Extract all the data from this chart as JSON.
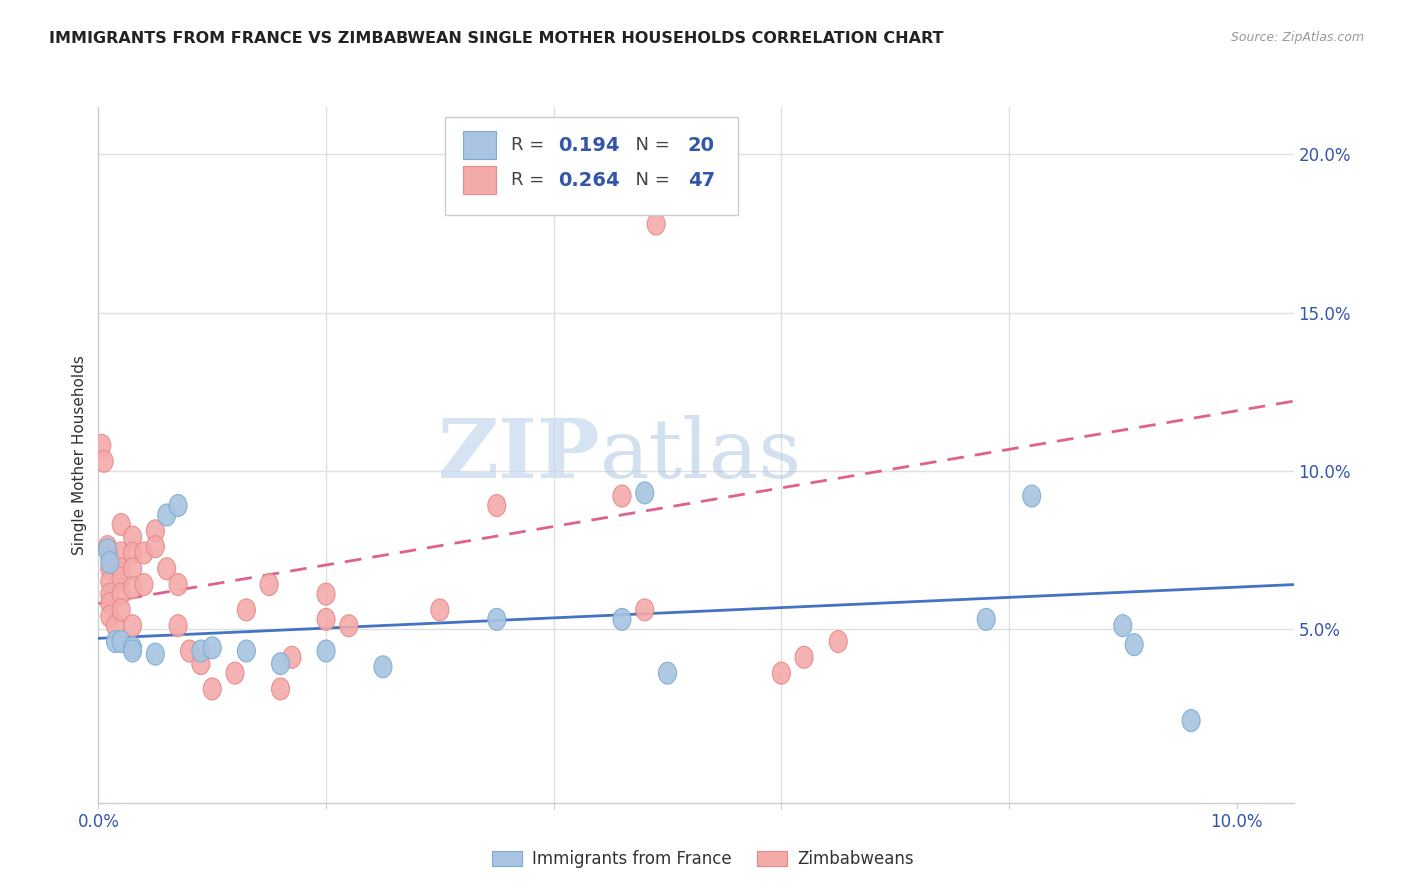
{
  "title": "IMMIGRANTS FROM FRANCE VS ZIMBABWEAN SINGLE MOTHER HOUSEHOLDS CORRELATION CHART",
  "source": "Source: ZipAtlas.com",
  "ylabel": "Single Mother Households",
  "ytick_labels": [
    "5.0%",
    "10.0%",
    "15.0%",
    "20.0%"
  ],
  "ytick_values": [
    0.05,
    0.1,
    0.15,
    0.2
  ],
  "xlim": [
    0.0,
    0.105
  ],
  "ylim": [
    -0.005,
    0.215
  ],
  "blue_color": "#a8c4e0",
  "pink_color": "#f4aaaa",
  "blue_edge_color": "#7aadd4",
  "pink_edge_color": "#e88888",
  "blue_line_color": "#4472C4",
  "pink_line_color": "#E06090",
  "blue_scatter": [
    [
      0.0008,
      0.075
    ],
    [
      0.001,
      0.071
    ],
    [
      0.0015,
      0.046
    ],
    [
      0.002,
      0.046
    ],
    [
      0.003,
      0.044
    ],
    [
      0.003,
      0.043
    ],
    [
      0.005,
      0.042
    ],
    [
      0.006,
      0.086
    ],
    [
      0.007,
      0.089
    ],
    [
      0.009,
      0.043
    ],
    [
      0.01,
      0.044
    ],
    [
      0.013,
      0.043
    ],
    [
      0.016,
      0.039
    ],
    [
      0.02,
      0.043
    ],
    [
      0.025,
      0.038
    ],
    [
      0.035,
      0.053
    ],
    [
      0.046,
      0.053
    ],
    [
      0.048,
      0.093
    ],
    [
      0.05,
      0.036
    ],
    [
      0.078,
      0.053
    ],
    [
      0.082,
      0.092
    ],
    [
      0.09,
      0.051
    ],
    [
      0.091,
      0.045
    ],
    [
      0.096,
      0.021
    ]
  ],
  "pink_scatter": [
    [
      0.0003,
      0.108
    ],
    [
      0.0005,
      0.103
    ],
    [
      0.0008,
      0.076
    ],
    [
      0.001,
      0.073
    ],
    [
      0.001,
      0.069
    ],
    [
      0.001,
      0.065
    ],
    [
      0.001,
      0.061
    ],
    [
      0.001,
      0.058
    ],
    [
      0.001,
      0.054
    ],
    [
      0.0015,
      0.051
    ],
    [
      0.002,
      0.083
    ],
    [
      0.002,
      0.074
    ],
    [
      0.002,
      0.069
    ],
    [
      0.002,
      0.066
    ],
    [
      0.002,
      0.061
    ],
    [
      0.002,
      0.056
    ],
    [
      0.003,
      0.079
    ],
    [
      0.003,
      0.074
    ],
    [
      0.003,
      0.069
    ],
    [
      0.003,
      0.063
    ],
    [
      0.003,
      0.051
    ],
    [
      0.004,
      0.074
    ],
    [
      0.004,
      0.064
    ],
    [
      0.005,
      0.081
    ],
    [
      0.005,
      0.076
    ],
    [
      0.006,
      0.069
    ],
    [
      0.007,
      0.064
    ],
    [
      0.007,
      0.051
    ],
    [
      0.008,
      0.043
    ],
    [
      0.009,
      0.039
    ],
    [
      0.01,
      0.031
    ],
    [
      0.012,
      0.036
    ],
    [
      0.013,
      0.056
    ],
    [
      0.015,
      0.064
    ],
    [
      0.016,
      0.031
    ],
    [
      0.017,
      0.041
    ],
    [
      0.02,
      0.053
    ],
    [
      0.02,
      0.061
    ],
    [
      0.022,
      0.051
    ],
    [
      0.03,
      0.056
    ],
    [
      0.035,
      0.089
    ],
    [
      0.046,
      0.092
    ],
    [
      0.048,
      0.056
    ],
    [
      0.049,
      0.178
    ],
    [
      0.06,
      0.036
    ],
    [
      0.062,
      0.041
    ],
    [
      0.065,
      0.046
    ]
  ],
  "blue_trend_x": [
    0.0,
    0.105
  ],
  "blue_trend_y": [
    0.047,
    0.064
  ],
  "pink_trend_x": [
    0.0,
    0.105
  ],
  "pink_trend_y": [
    0.058,
    0.122
  ],
  "watermark_zip": "ZIP",
  "watermark_atlas": "atlas",
  "background_color": "#ffffff",
  "grid_color": "#e0e0e0",
  "legend_r_color": "#444444",
  "legend_val_color": "#3355AA",
  "legend_n_color": "#444444"
}
